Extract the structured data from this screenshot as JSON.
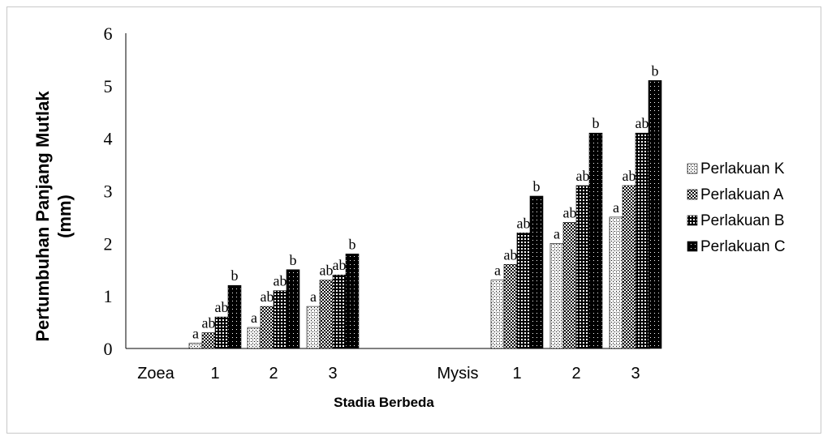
{
  "chart_data": {
    "type": "bar",
    "title": "",
    "xlabel": "Stadia Berbeda",
    "ylabel_lines": [
      "Pertumbuhan Panjang Mutlak",
      "(mm)"
    ],
    "ylim": [
      0,
      6
    ],
    "yticks": [
      "0",
      "1",
      "2",
      "3",
      "4",
      "5",
      "6"
    ],
    "grid": false,
    "legend_position": "right",
    "categories": [
      "Zoea",
      "1",
      "2",
      "3",
      "Mysis",
      "1",
      "2",
      "3"
    ],
    "series": [
      {
        "name": "Perlakuan K",
        "pattern": "sparse",
        "values": [
          null,
          0.1,
          0.4,
          0.8,
          null,
          1.3,
          2.0,
          2.5
        ],
        "labels": [
          "",
          "a",
          "a",
          "a",
          "",
          "a",
          "a",
          "a"
        ]
      },
      {
        "name": "Perlakuan A",
        "pattern": "checker",
        "values": [
          null,
          0.3,
          0.8,
          1.3,
          null,
          1.6,
          2.4,
          3.1
        ],
        "labels": [
          "",
          "ab",
          "ab",
          "ab",
          "",
          "ab",
          "ab",
          "ab"
        ]
      },
      {
        "name": "Perlakuan B",
        "pattern": "grid",
        "values": [
          null,
          0.6,
          1.1,
          1.4,
          null,
          2.2,
          3.1,
          4.1
        ],
        "labels": [
          "",
          "ab",
          "ab",
          "ab",
          "",
          "ab",
          "ab",
          "ab"
        ]
      },
      {
        "name": "Perlakuan C",
        "pattern": "dots",
        "values": [
          null,
          1.2,
          1.5,
          1.8,
          null,
          2.9,
          4.1,
          5.1
        ],
        "labels": [
          "",
          "b",
          "b",
          "b",
          "",
          "b",
          "b",
          "b"
        ]
      }
    ]
  }
}
